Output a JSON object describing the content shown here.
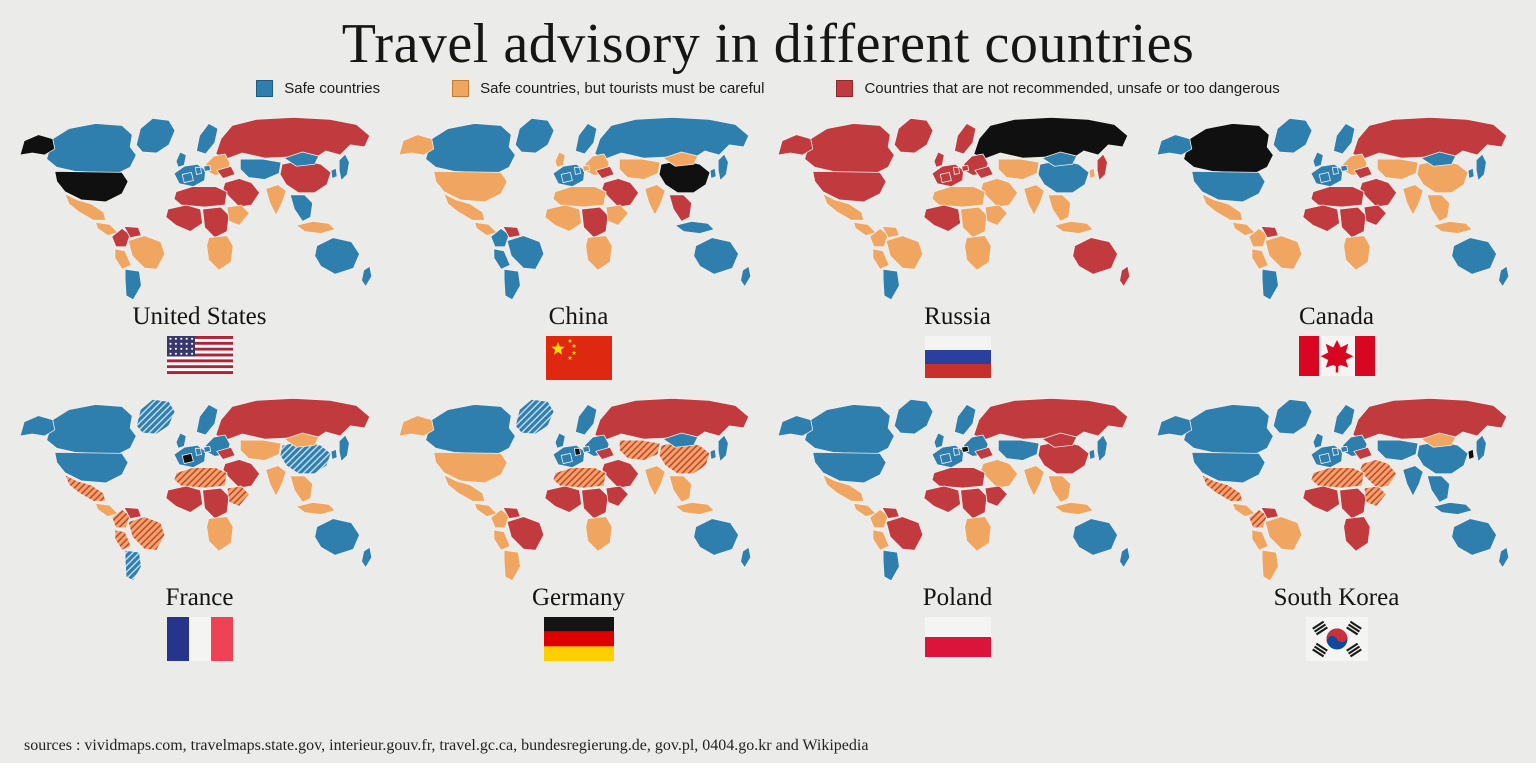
{
  "title": "Travel advisory in different countries",
  "sources": "sources : vividmaps.com, travelmaps.state.gov, interieur.gouv.fr, travel.gc.ca, bundesregierung.de, gov.pl, 0404.go.kr and Wikipedia",
  "colors": {
    "safe": "#2E7EAE",
    "careful": "#F0A661",
    "danger": "#C03A3E",
    "home": "#101010",
    "background": "#EBEBE9",
    "safe_border": "#1D5B80",
    "careful_border": "#C07B35",
    "danger_border": "#8E2A2E"
  },
  "legend": [
    {
      "level": "safe",
      "label": "Safe countries"
    },
    {
      "level": "careful",
      "label": "Safe countries, but tourists must be careful"
    },
    {
      "level": "danger",
      "label": "Countries that are not recommended, unsafe or too dangerous"
    }
  ],
  "maps": [
    {
      "country": "United States",
      "flag": "us",
      "regions": {
        "greenland": "safe",
        "alaska": "home",
        "canada": "safe",
        "usa": "home",
        "mexico": "careful",
        "camerica": "careful",
        "colombia": "danger",
        "venezuela": "danger",
        "peru": "careful",
        "brazil": "careful",
        "argentina": "safe",
        "uk": "safe",
        "scandinavia": "safe",
        "weurope": "safe",
        "france": "safe",
        "germany": "safe",
        "poland": "safe",
        "eeurope": "careful",
        "ukraine": "danger",
        "russia": "danger",
        "kazakh": "safe",
        "mideast": "danger",
        "nafrica": "danger",
        "wafrica": "danger",
        "cafrica": "danger",
        "eafrica": "careful",
        "safrica": "careful",
        "india": "careful",
        "china": "danger",
        "mongolia": "safe",
        "seasia": "safe",
        "indonesia": "careful",
        "japan": "safe",
        "korea": "safe",
        "australia": "safe",
        "nz": "safe"
      }
    },
    {
      "country": "China",
      "flag": "cn",
      "regions": {
        "greenland": "safe",
        "alaska": "careful",
        "canada": "safe",
        "usa": "careful",
        "mexico": "careful",
        "camerica": "careful",
        "colombia": "safe",
        "venezuela": "danger",
        "peru": "safe",
        "brazil": "safe",
        "argentina": "safe",
        "uk": "careful",
        "scandinavia": "safe",
        "weurope": "safe",
        "france": "safe",
        "germany": "safe",
        "poland": "careful",
        "eeurope": "careful",
        "ukraine": "danger",
        "russia": "safe",
        "kazakh": "careful",
        "mideast": "danger",
        "nafrica": "careful",
        "wafrica": "careful",
        "cafrica": "danger",
        "eafrica": "careful",
        "safrica": "careful",
        "india": "careful",
        "china": "home",
        "mongolia": "careful",
        "seasia": "danger",
        "indonesia": "safe",
        "japan": "safe",
        "korea": "safe",
        "australia": "safe",
        "nz": "safe"
      }
    },
    {
      "country": "Russia",
      "flag": "ru",
      "regions": {
        "greenland": "danger",
        "alaska": "danger",
        "canada": "danger",
        "usa": "danger",
        "mexico": "careful",
        "camerica": "careful",
        "colombia": "careful",
        "venezuela": "careful",
        "peru": "careful",
        "brazil": "careful",
        "argentina": "safe",
        "uk": "danger",
        "scandinavia": "danger",
        "weurope": "danger",
        "france": "danger",
        "germany": "danger",
        "poland": "danger",
        "eeurope": "danger",
        "ukraine": "danger",
        "russia": "home",
        "kazakh": "careful",
        "mideast": "careful",
        "nafrica": "careful",
        "wafrica": "danger",
        "cafrica": "careful",
        "eafrica": "careful",
        "safrica": "careful",
        "india": "careful",
        "china": "safe",
        "mongolia": "safe",
        "seasia": "careful",
        "indonesia": "careful",
        "japan": "danger",
        "korea": "careful",
        "australia": "danger",
        "nz": "danger"
      }
    },
    {
      "country": "Canada",
      "flag": "ca",
      "regions": {
        "greenland": "safe",
        "alaska": "safe",
        "canada": "home",
        "usa": "safe",
        "mexico": "careful",
        "camerica": "careful",
        "colombia": "careful",
        "venezuela": "danger",
        "peru": "careful",
        "brazil": "careful",
        "argentina": "safe",
        "uk": "safe",
        "scandinavia": "safe",
        "weurope": "safe",
        "france": "safe",
        "germany": "safe",
        "poland": "safe",
        "eeurope": "careful",
        "ukraine": "danger",
        "russia": "danger",
        "kazakh": "careful",
        "mideast": "danger",
        "nafrica": "danger",
        "wafrica": "danger",
        "cafrica": "danger",
        "eafrica": "danger",
        "safrica": "careful",
        "india": "careful",
        "china": "careful",
        "mongolia": "safe",
        "seasia": "careful",
        "indonesia": "careful",
        "japan": "safe",
        "korea": "safe",
        "australia": "safe",
        "nz": "safe"
      }
    },
    {
      "country": "France",
      "flag": "fr",
      "regions": {
        "greenland": "safe_hatched",
        "alaska": "safe",
        "canada": "safe",
        "usa": "safe",
        "mexico": "careful_hatched",
        "camerica": "careful",
        "colombia": "careful_hatched",
        "venezuela": "danger",
        "peru": "careful_hatched",
        "brazil": "careful_hatched",
        "argentina": "safe_hatched",
        "uk": "safe",
        "scandinavia": "safe",
        "weurope": "safe",
        "france": "home",
        "germany": "safe",
        "poland": "safe",
        "eeurope": "safe",
        "ukraine": "danger",
        "russia": "danger",
        "kazakh": "careful",
        "mideast": "danger",
        "nafrica": "careful_hatched",
        "wafrica": "danger",
        "cafrica": "danger",
        "eafrica": "careful_hatched",
        "safrica": "careful",
        "india": "careful",
        "china": "safe_hatched",
        "mongolia": "careful",
        "seasia": "careful",
        "indonesia": "careful",
        "japan": "safe",
        "korea": "safe",
        "australia": "safe",
        "nz": "safe"
      }
    },
    {
      "country": "Germany",
      "flag": "de",
      "regions": {
        "greenland": "safe_hatched",
        "alaska": "careful",
        "canada": "safe",
        "usa": "careful",
        "mexico": "careful",
        "camerica": "careful",
        "colombia": "careful",
        "venezuela": "danger",
        "peru": "careful",
        "brazil": "danger",
        "argentina": "careful",
        "uk": "safe",
        "scandinavia": "safe",
        "weurope": "safe",
        "france": "safe",
        "germany": "home",
        "poland": "safe",
        "eeurope": "safe",
        "ukraine": "danger",
        "russia": "danger",
        "kazakh": "careful_hatched",
        "mideast": "danger",
        "nafrica": "careful_hatched",
        "wafrica": "danger",
        "cafrica": "danger",
        "eafrica": "danger",
        "safrica": "careful",
        "india": "careful",
        "china": "careful_hatched",
        "mongolia": "safe",
        "seasia": "careful",
        "indonesia": "careful",
        "japan": "safe",
        "korea": "safe",
        "australia": "safe",
        "nz": "safe"
      }
    },
    {
      "country": "Poland",
      "flag": "pl",
      "regions": {
        "greenland": "safe",
        "alaska": "safe",
        "canada": "safe",
        "usa": "safe",
        "mexico": "careful",
        "camerica": "careful",
        "colombia": "careful",
        "venezuela": "danger",
        "peru": "careful",
        "brazil": "danger",
        "argentina": "safe",
        "uk": "safe",
        "scandinavia": "safe",
        "weurope": "safe",
        "france": "safe",
        "germany": "safe",
        "poland": "home",
        "eeurope": "safe",
        "ukraine": "danger",
        "russia": "danger",
        "kazakh": "safe",
        "mideast": "careful",
        "nafrica": "danger",
        "wafrica": "danger",
        "cafrica": "danger",
        "eafrica": "danger",
        "safrica": "careful",
        "india": "careful",
        "china": "danger",
        "mongolia": "danger",
        "seasia": "careful",
        "indonesia": "careful",
        "japan": "safe",
        "korea": "safe",
        "australia": "safe",
        "nz": "safe"
      }
    },
    {
      "country": "South Korea",
      "flag": "kr",
      "regions": {
        "greenland": "safe",
        "alaska": "safe",
        "canada": "safe",
        "usa": "safe",
        "mexico": "careful_hatched",
        "camerica": "careful",
        "colombia": "careful_hatched",
        "venezuela": "danger",
        "peru": "careful",
        "brazil": "careful",
        "argentina": "careful",
        "uk": "safe",
        "scandinavia": "safe",
        "weurope": "safe",
        "france": "safe",
        "germany": "safe",
        "poland": "safe",
        "eeurope": "safe",
        "ukraine": "danger",
        "russia": "danger",
        "kazakh": "safe",
        "mideast": "careful_hatched",
        "nafrica": "careful_hatched",
        "wafrica": "danger",
        "cafrica": "danger",
        "eafrica": "careful_hatched",
        "safrica": "danger",
        "india": "safe",
        "china": "safe",
        "mongolia": "careful",
        "seasia": "safe",
        "indonesia": "safe",
        "japan": "safe",
        "korea": "home",
        "australia": "safe",
        "nz": "safe"
      }
    }
  ]
}
